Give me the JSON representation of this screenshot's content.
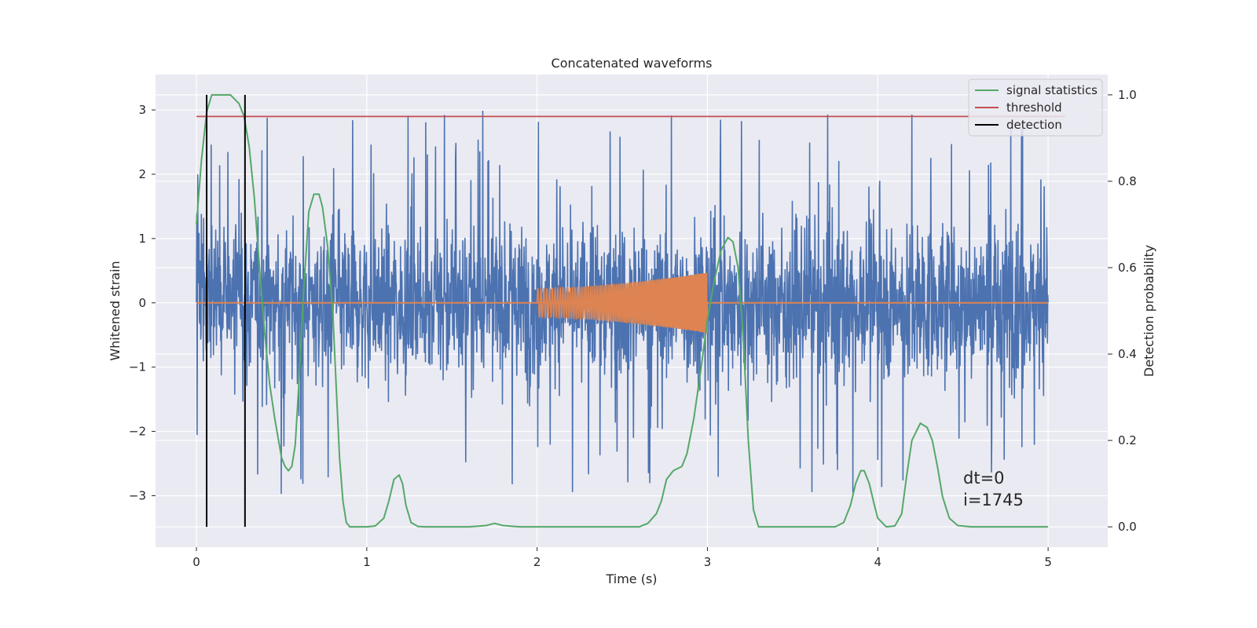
{
  "chart_data": {
    "type": "line",
    "title": "Concatenated waveforms",
    "xlabel": "Time (s)",
    "ylabel": "Whitened strain",
    "y2label": "Detection probability",
    "xlim": [
      -0.24,
      5.35
    ],
    "ylim": [
      -3.8,
      3.55
    ],
    "y2lim": [
      -0.047,
      1.047
    ],
    "x_ticks": [
      0,
      1,
      2,
      3,
      4,
      5
    ],
    "x_tick_labels": [
      "0",
      "1",
      "2",
      "3",
      "4",
      "5"
    ],
    "y_ticks": [
      -3,
      -2,
      -1,
      0,
      1,
      2,
      3
    ],
    "y_tick_labels": [
      "−3",
      "−2",
      "−1",
      "0",
      "1",
      "2",
      "3"
    ],
    "y2_ticks": [
      0.0,
      0.2,
      0.4,
      0.6,
      0.8,
      1.0
    ],
    "y2_tick_labels": [
      "0.0",
      "0.2",
      "0.4",
      "0.6",
      "0.8",
      "1.0"
    ],
    "grid": true,
    "legend_position": "top-right",
    "colors": {
      "background": "#eaeaf2",
      "grid": "#ffffff",
      "whitened_strain": "#4c72b0",
      "injected_waveform": "#dd8452",
      "signal_statistics": "#55a868",
      "threshold": "#c44e52",
      "detection": "#000000"
    },
    "series": [
      {
        "name": "signal statistics",
        "axis": "right",
        "x": [
          0.0,
          0.03,
          0.06,
          0.09,
          0.12,
          0.2,
          0.25,
          0.28,
          0.31,
          0.34,
          0.37,
          0.4,
          0.43,
          0.46,
          0.5,
          0.52,
          0.54,
          0.56,
          0.58,
          0.6,
          0.63,
          0.66,
          0.69,
          0.72,
          0.74,
          0.77,
          0.8,
          0.82,
          0.84,
          0.86,
          0.88,
          0.9,
          0.92,
          0.95,
          1.0,
          1.05,
          1.1,
          1.13,
          1.16,
          1.19,
          1.21,
          1.23,
          1.26,
          1.3,
          1.35,
          1.4,
          1.6,
          1.7,
          1.75,
          1.8,
          1.9,
          2.2,
          2.6,
          2.65,
          2.7,
          2.73,
          2.76,
          2.8,
          2.85,
          2.88,
          2.92,
          2.96,
          3.0,
          3.04,
          3.08,
          3.12,
          3.15,
          3.18,
          3.21,
          3.24,
          3.27,
          3.3,
          3.4,
          3.6,
          3.75,
          3.8,
          3.84,
          3.87,
          3.9,
          3.92,
          3.95,
          3.98,
          4.0,
          4.05,
          4.1,
          4.14,
          4.17,
          4.2,
          4.25,
          4.29,
          4.32,
          4.35,
          4.38,
          4.42,
          4.47,
          4.55,
          4.7,
          5.0
        ],
        "y": [
          0.7,
          0.85,
          0.96,
          1.0,
          1.0,
          1.0,
          0.98,
          0.95,
          0.88,
          0.76,
          0.6,
          0.45,
          0.33,
          0.25,
          0.16,
          0.14,
          0.13,
          0.14,
          0.19,
          0.32,
          0.55,
          0.73,
          0.77,
          0.77,
          0.74,
          0.65,
          0.5,
          0.33,
          0.16,
          0.06,
          0.01,
          0.0,
          0.0,
          0.0,
          0.0,
          0.002,
          0.02,
          0.06,
          0.11,
          0.12,
          0.1,
          0.05,
          0.01,
          0.001,
          0.0,
          0.0,
          0.0,
          0.003,
          0.008,
          0.003,
          0.0,
          0.0,
          0.0,
          0.008,
          0.03,
          0.06,
          0.11,
          0.13,
          0.14,
          0.17,
          0.25,
          0.36,
          0.48,
          0.57,
          0.64,
          0.67,
          0.66,
          0.6,
          0.44,
          0.2,
          0.04,
          0.0,
          0.0,
          0.0,
          0.0,
          0.01,
          0.05,
          0.1,
          0.13,
          0.13,
          0.1,
          0.05,
          0.02,
          0.0,
          0.002,
          0.03,
          0.12,
          0.2,
          0.24,
          0.23,
          0.2,
          0.14,
          0.07,
          0.02,
          0.003,
          0.0,
          0.0,
          0.0
        ]
      },
      {
        "name": "threshold",
        "axis": "right",
        "x": [
          0.0,
          5.1
        ],
        "y": [
          0.95,
          0.95
        ]
      },
      {
        "name": "detection",
        "axis": "right",
        "type": "vlines",
        "x": [
          0.06,
          0.285
        ],
        "ymin": 0.0,
        "ymax": 1.0
      },
      {
        "axis": "left",
        "type": "noise",
        "x_range": [
          0.0,
          5.0
        ],
        "y_envelope": [
          -3.5,
          3.15
        ]
      },
      {
        "axis": "left",
        "type": "chirp",
        "x_range": [
          2.0,
          3.0
        ],
        "y_envelope": [
          0.22,
          0.47
        ],
        "baseline_x_range": [
          0.0,
          5.0
        ],
        "baseline_y": 0.0
      }
    ],
    "legend": [
      "signal statistics",
      "threshold",
      "detection"
    ],
    "annotations": [
      "dt=0",
      "i=1745"
    ]
  }
}
